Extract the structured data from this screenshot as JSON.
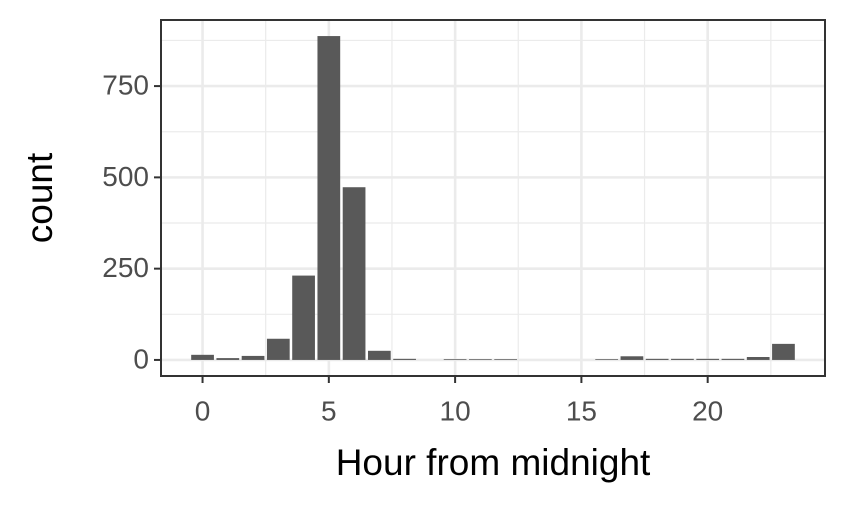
{
  "chart_data": {
    "type": "bar",
    "x_label": "Hour from midnight",
    "y_label": "count",
    "x": [
      0,
      1,
      2,
      3,
      4,
      5,
      6,
      7,
      8,
      9,
      10,
      11,
      12,
      13,
      14,
      15,
      16,
      17,
      18,
      19,
      20,
      21,
      22,
      23
    ],
    "values": [
      14,
      5,
      11,
      58,
      231,
      887,
      473,
      25,
      3,
      0,
      2,
      2,
      2,
      0,
      0,
      0,
      2,
      10,
      3,
      3,
      3,
      3,
      8,
      44
    ],
    "color": "#595959",
    "xlim": [
      -1.645,
      24.645
    ],
    "xticks": [
      0,
      5,
      10,
      15,
      20
    ],
    "x_minor_ticks": [
      2.5,
      7.5,
      12.5,
      17.5,
      22.5
    ],
    "ylim": [
      -44,
      931
    ],
    "yticks": [
      0,
      250,
      500,
      750
    ],
    "y_minor_ticks": [
      125,
      375,
      625,
      875
    ],
    "grid": true
  }
}
